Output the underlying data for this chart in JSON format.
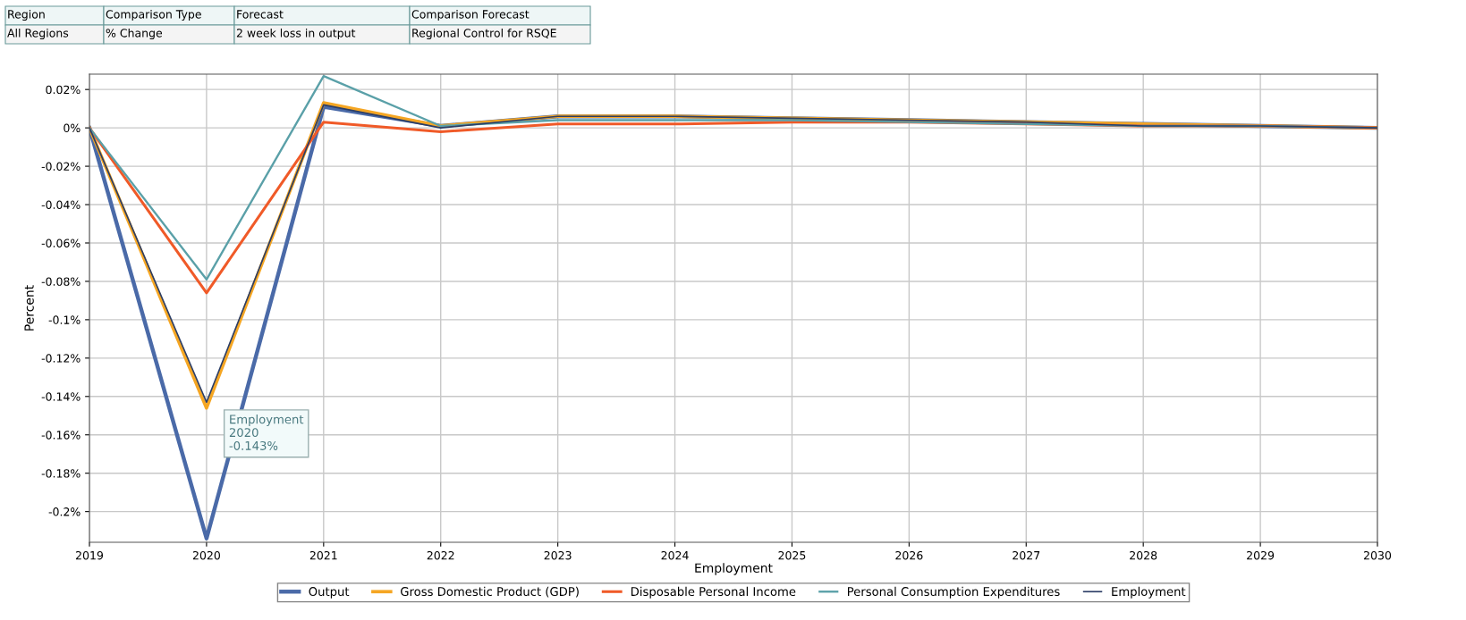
{
  "chart_data": {
    "type": "line",
    "xlabel": "Employment",
    "ylabel": "Percent",
    "x": [
      2019,
      2020,
      2021,
      2022,
      2023,
      2024,
      2025,
      2026,
      2027,
      2028,
      2029,
      2030
    ],
    "series": [
      {
        "name": "Output",
        "color": "#4a6aa8",
        "values": [
          0,
          -0.214,
          0.011,
          0.001,
          0.006,
          0.006,
          0.005,
          0.004,
          0.003,
          0.002,
          0.001,
          0
        ]
      },
      {
        "name": "Gross Domestic Product (GDP)",
        "color": "#f5a623",
        "values": [
          0,
          -0.146,
          0.013,
          0.001,
          0.006,
          0.006,
          0.005,
          0.004,
          0.003,
          0.002,
          0.001,
          0
        ]
      },
      {
        "name": "Disposable Personal Income",
        "color": "#f05a28",
        "values": [
          0,
          -0.086,
          0.003,
          -0.002,
          0.002,
          0.002,
          0.003,
          0.003,
          0.002,
          0.001,
          0.001,
          0
        ]
      },
      {
        "name": "Personal Consumption Expenditures",
        "color": "#5aa0a8",
        "values": [
          0,
          -0.079,
          0.027,
          0.001,
          0.004,
          0.004,
          0.004,
          0.003,
          0.002,
          0.001,
          0.001,
          0
        ]
      },
      {
        "name": "Employment",
        "color": "#2c3e66",
        "values": [
          0,
          -0.143,
          0.012,
          0.0,
          0.006,
          0.006,
          0.005,
          0.004,
          0.003,
          0.001,
          0.001,
          0
        ]
      }
    ],
    "xlim": [
      2019,
      2030
    ],
    "xticks": [
      2019,
      2020,
      2021,
      2022,
      2023,
      2024,
      2025,
      2026,
      2027,
      2028,
      2029,
      2030
    ],
    "ylim": [
      -0.216,
      0.028
    ],
    "yticks": [
      {
        "value": -0.2,
        "label": "-0.2%"
      },
      {
        "value": -0.18,
        "label": "-0.18%"
      },
      {
        "value": -0.16,
        "label": "-0.16%"
      },
      {
        "value": -0.14,
        "label": "-0.14%"
      },
      {
        "value": -0.12,
        "label": "-0.12%"
      },
      {
        "value": -0.1,
        "label": "-0.1%"
      },
      {
        "value": -0.08,
        "label": "-0.08%"
      },
      {
        "value": -0.06,
        "label": "-0.06%"
      },
      {
        "value": -0.04,
        "label": "-0.04%"
      },
      {
        "value": -0.02,
        "label": "-0.02%"
      },
      {
        "value": 0,
        "label": "0%"
      },
      {
        "value": 0.02,
        "label": "0.02%"
      }
    ],
    "grid": true,
    "legend": "bottom",
    "marker": "none",
    "line_style": "solid",
    "annotations": [
      "Region",
      "Comparison Type",
      "Forecast",
      "Comparison Forecast",
      "All Regions",
      "% Change",
      "2 week loss in output",
      "Regional Control for RSQE",
      {
        "text": "Employment\n2020\n-0.143%",
        "x": 2020,
        "y": -0.143
      }
    ]
  }
}
